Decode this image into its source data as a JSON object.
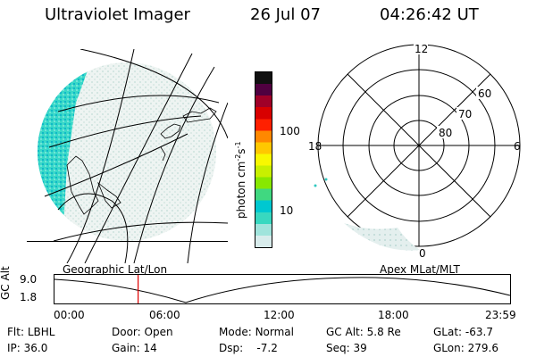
{
  "header": {
    "title": "Ultraviolet Imager",
    "date": "26 Jul 07",
    "time": "04:26:42 UT"
  },
  "colorbar": {
    "unit_label": "photon cm",
    "unit_sup": "-2",
    "unit_mid": "s",
    "unit_sup2": "-1",
    "ticks": [
      {
        "label": "100",
        "value": 100
      },
      {
        "label": "10",
        "value": 10
      }
    ],
    "colors": [
      "#d8ecec",
      "#a0e4dc",
      "#38d8c0",
      "#00c8d0",
      "#40d880",
      "#88e800",
      "#c8f000",
      "#f8f800",
      "#ffc800",
      "#ff8800",
      "#ff2000",
      "#d80000",
      "#a00028",
      "#500040",
      "#101010"
    ]
  },
  "polar_plot": {
    "labels_top": "12",
    "labels_left": "18",
    "labels_right": "6",
    "labels_bottom": "0",
    "lat_labels": [
      "60",
      "70",
      "80"
    ]
  },
  "map_labels": {
    "left": "Geographic Lat/Lon",
    "right": "Apex MLat/MLT"
  },
  "timeline": {
    "ylabel": "GC Alt",
    "yticks": [
      "9.0",
      "1.8"
    ],
    "xticks": [
      "00:00",
      "06:00",
      "12:00",
      "18:00",
      "23:59"
    ],
    "current_time_hours": 4.445
  },
  "info": {
    "filter_label": "Flt:",
    "filter_value": "LBHL",
    "door_label": "Door:",
    "door_value": "Open",
    "mode_label": "Mode:",
    "mode_value": "Normal",
    "gcalt_label": "GC Alt:",
    "gcalt_value": "5.8 Re",
    "glat_label": "GLat:",
    "glat_value": "-63.7",
    "ip_label": "IP:",
    "ip_value": "36.0",
    "gain_label": "Gain:",
    "gain_value": "14",
    "dsp_label": "Dsp:",
    "dsp_value": "-7.2",
    "seq_label": "Seq:",
    "seq_value": "39",
    "glon_label": "GLon:",
    "glon_value": "279.6"
  }
}
